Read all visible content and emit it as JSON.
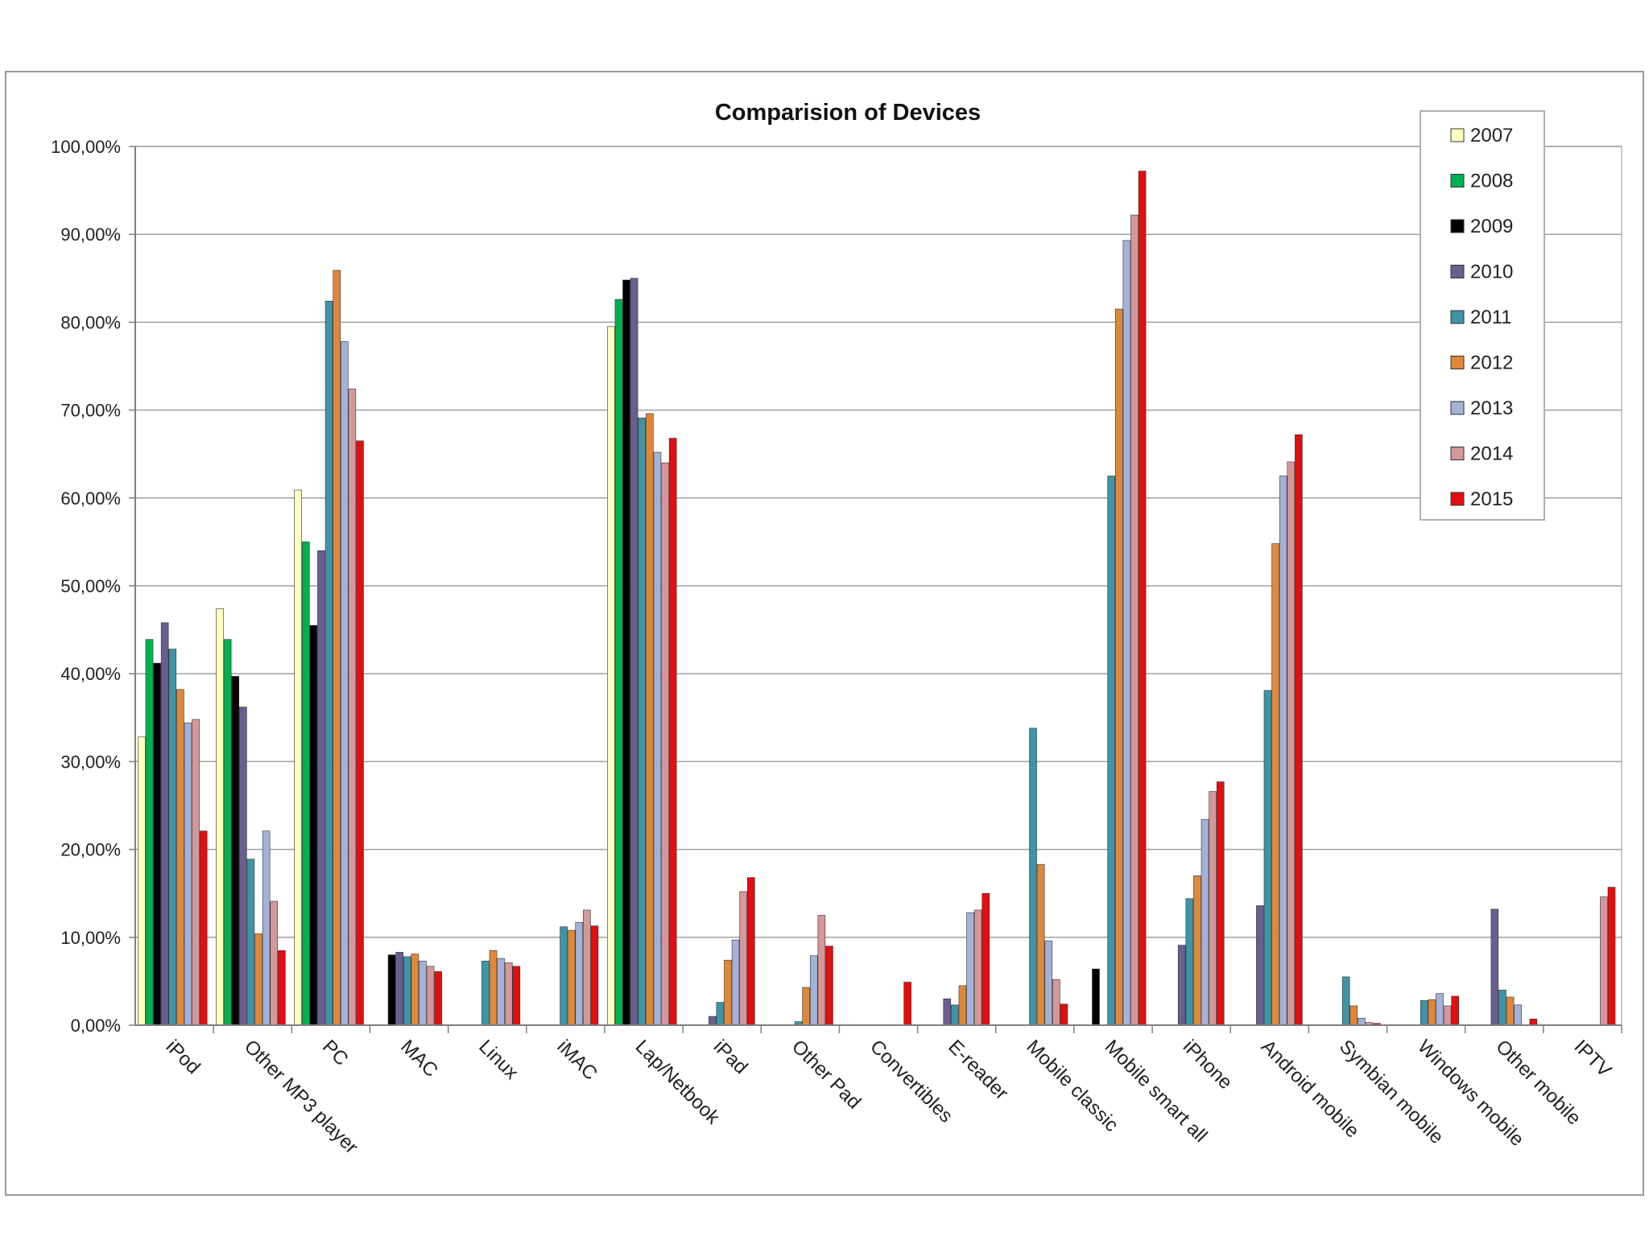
{
  "chart_data": {
    "type": "bar",
    "title": "Comparision of Devices",
    "xlabel": "",
    "ylabel": "",
    "ylim": [
      0,
      100
    ],
    "y_ticks": [
      "0,00%",
      "10,00%",
      "20,00%",
      "30,00%",
      "40,00%",
      "50,00%",
      "60,00%",
      "70,00%",
      "80,00%",
      "90,00%",
      "100,00%"
    ],
    "grid": true,
    "legend_position": "top-right",
    "categories": [
      "iPod",
      "Other MP3 player",
      "PC",
      "MAC",
      "Linux",
      "iMAC",
      "Lap/Netbook",
      "iPad",
      "Other Pad",
      "Convertibles",
      "E-reader",
      "Mobile classic",
      "Mobile smart all",
      "iPhone",
      "Android mobile",
      "Symbian mobile",
      "Windows mobile",
      "Other mobile",
      "IPTV"
    ],
    "series": [
      {
        "name": "2007",
        "color": "#ffffc0",
        "values": [
          32.8,
          47.4,
          60.9,
          null,
          null,
          null,
          79.5,
          null,
          null,
          null,
          null,
          null,
          null,
          null,
          null,
          null,
          null,
          null,
          null
        ]
      },
      {
        "name": "2008",
        "color": "#00b050",
        "values": [
          43.9,
          43.9,
          55.0,
          null,
          null,
          null,
          82.6,
          null,
          null,
          null,
          null,
          null,
          null,
          null,
          null,
          null,
          null,
          null,
          null
        ]
      },
      {
        "name": "2009",
        "color": "#000000",
        "values": [
          41.2,
          39.7,
          45.5,
          8.0,
          null,
          null,
          84.8,
          null,
          null,
          null,
          null,
          null,
          6.4,
          null,
          null,
          null,
          null,
          null,
          null
        ]
      },
      {
        "name": "2010",
        "color": "#6a5d8f",
        "values": [
          45.8,
          36.2,
          54.0,
          8.3,
          null,
          null,
          85.0,
          1.0,
          null,
          null,
          3.0,
          null,
          null,
          9.1,
          13.6,
          null,
          null,
          13.2,
          null
        ]
      },
      {
        "name": "2011",
        "color": "#3f94a6",
        "values": [
          42.8,
          18.9,
          82.4,
          7.8,
          7.3,
          11.2,
          69.1,
          2.6,
          0.4,
          null,
          2.3,
          33.8,
          62.5,
          14.4,
          38.1,
          5.5,
          2.8,
          4.0,
          null
        ]
      },
      {
        "name": "2012",
        "color": "#e0883a",
        "values": [
          38.2,
          10.4,
          85.9,
          8.1,
          8.5,
          10.8,
          69.6,
          7.4,
          4.3,
          null,
          4.5,
          18.3,
          81.5,
          17.0,
          54.8,
          2.2,
          2.9,
          3.2,
          null
        ]
      },
      {
        "name": "2013",
        "color": "#a4b2d8",
        "values": [
          34.4,
          22.1,
          77.8,
          7.3,
          7.6,
          11.7,
          65.2,
          9.7,
          7.9,
          null,
          12.8,
          9.6,
          89.3,
          23.4,
          62.5,
          0.8,
          3.6,
          2.3,
          null
        ]
      },
      {
        "name": "2014",
        "color": "#d4979a",
        "values": [
          34.8,
          14.1,
          72.4,
          6.7,
          7.1,
          13.1,
          64.0,
          15.2,
          12.5,
          null,
          13.1,
          5.2,
          92.2,
          26.6,
          64.1,
          0.3,
          2.2,
          null,
          14.6
        ]
      },
      {
        "name": "2015",
        "color": "#e01010",
        "values": [
          22.1,
          8.5,
          66.5,
          6.1,
          6.7,
          11.3,
          66.8,
          16.8,
          9.0,
          4.9,
          15.0,
          2.4,
          97.2,
          27.7,
          67.2,
          0.2,
          3.3,
          0.7,
          15.7
        ]
      }
    ]
  }
}
